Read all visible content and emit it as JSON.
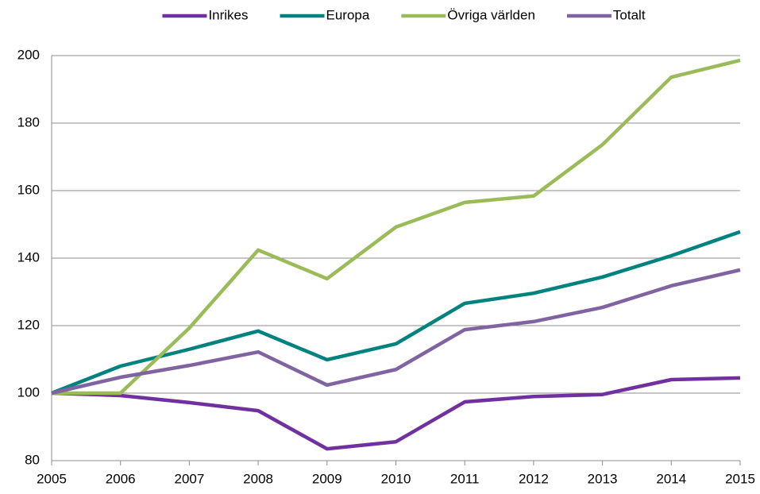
{
  "chart_data": {
    "type": "line",
    "x": [
      2005,
      2006,
      2007,
      2008,
      2009,
      2010,
      2011,
      2012,
      2013,
      2014,
      2015
    ],
    "xlim": [
      2005,
      2015
    ],
    "xticks": [
      2005,
      2006,
      2007,
      2008,
      2009,
      2010,
      2011,
      2012,
      2013,
      2014,
      2015
    ],
    "ylim": [
      80,
      200
    ],
    "yticks": [
      80,
      100,
      120,
      140,
      160,
      180,
      200
    ],
    "grid": true,
    "legend": "top",
    "series": [
      {
        "name": "Inrikes",
        "color": "#7030a0",
        "values": [
          100,
          99.3,
          97.2,
          94.8,
          83.5,
          85.6,
          97.4,
          99,
          99.6,
          104,
          104.5
        ]
      },
      {
        "name": "Europa",
        "color": "#00827f",
        "values": [
          100,
          108,
          113,
          118.4,
          109.9,
          114.6,
          126.6,
          129.6,
          134.4,
          140.7,
          147.8
        ]
      },
      {
        "name": "Övriga världen",
        "color": "#9bbb59",
        "values": [
          100,
          100,
          119.3,
          142.4,
          133.9,
          149.2,
          156.5,
          158.4,
          173.6,
          193.6,
          198.6
        ]
      },
      {
        "name": "Totalt",
        "color": "#8064a2",
        "values": [
          100,
          104.7,
          108.2,
          112.2,
          102.4,
          107,
          118.8,
          121.2,
          125.4,
          131.8,
          136.5
        ]
      }
    ]
  }
}
